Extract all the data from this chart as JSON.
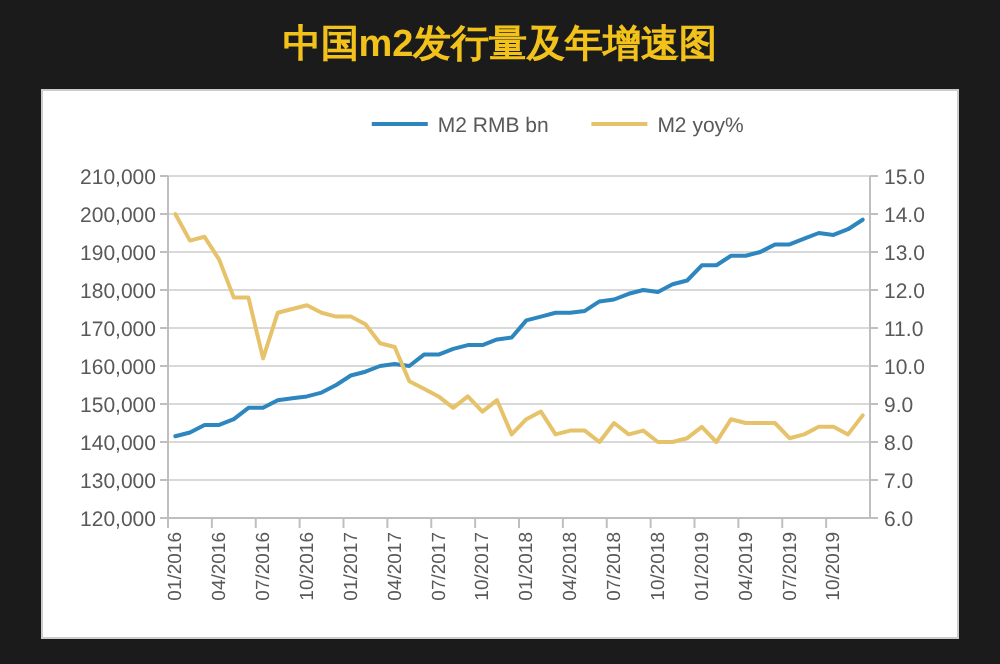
{
  "chart_data": {
    "type": "line",
    "title": "中国m2发行量及年增速图",
    "categories": [
      "01/2016",
      null,
      null,
      "04/2016",
      null,
      null,
      "07/2016",
      null,
      null,
      "10/2016",
      null,
      null,
      "01/2017",
      null,
      null,
      "04/2017",
      null,
      null,
      "07/2017",
      null,
      null,
      "10/2017",
      null,
      null,
      "01/2018",
      null,
      null,
      "04/2018",
      null,
      null,
      "07/2018",
      null,
      null,
      "10/2018",
      null,
      null,
      "01/2019",
      null,
      null,
      "04/2019",
      null,
      null,
      "07/2019",
      null,
      null,
      "10/2019",
      null,
      null
    ],
    "series": [
      {
        "name": "M2 RMB bn",
        "color": "#2e86bf",
        "values": [
          141500,
          142500,
          144500,
          144500,
          146000,
          149000,
          149000,
          151000,
          151500,
          152000,
          153000,
          155000,
          157500,
          158500,
          160000,
          160500,
          160000,
          163000,
          163000,
          164500,
          165500,
          165500,
          167000,
          167500,
          172000,
          173000,
          174000,
          174000,
          174500,
          177000,
          177500,
          179000,
          180000,
          179500,
          181500,
          182500,
          186500,
          186500,
          189000,
          189000,
          190000,
          192000,
          192000,
          193500,
          195000,
          194500,
          196000,
          198500
        ]
      },
      {
        "name": "M2 yoy%",
        "color": "#e6c36a",
        "axis": "y2",
        "values": [
          14.0,
          13.3,
          13.4,
          12.8,
          11.8,
          11.8,
          10.2,
          11.4,
          11.5,
          11.6,
          11.4,
          11.3,
          11.3,
          11.1,
          10.6,
          10.5,
          9.6,
          9.4,
          9.2,
          8.9,
          9.2,
          8.8,
          9.1,
          8.2,
          8.6,
          8.8,
          8.2,
          8.3,
          8.3,
          8.0,
          8.5,
          8.2,
          8.3,
          8.0,
          8.0,
          8.1,
          8.4,
          8.0,
          8.6,
          8.5,
          8.5,
          8.5,
          8.1,
          8.2,
          8.4,
          8.4,
          8.2,
          8.7
        ]
      }
    ],
    "ylim": [
      120000,
      210000
    ],
    "yticks": [
      {
        "value": 120000,
        "label": "120,000"
      },
      {
        "value": 130000,
        "label": "130,000"
      },
      {
        "value": 140000,
        "label": "140,000"
      },
      {
        "value": 150000,
        "label": "150,000"
      },
      {
        "value": 160000,
        "label": "160,000"
      },
      {
        "value": 170000,
        "label": "170,000"
      },
      {
        "value": 180000,
        "label": "180,000"
      },
      {
        "value": 190000,
        "label": "190,000"
      },
      {
        "value": 200000,
        "label": "200,000"
      },
      {
        "value": 210000,
        "label": "210,000"
      }
    ],
    "y2lim": [
      6,
      15
    ],
    "y2ticks": [
      {
        "value": 6,
        "label": "6.0"
      },
      {
        "value": 7,
        "label": "7.0"
      },
      {
        "value": 8,
        "label": "8.0"
      },
      {
        "value": 9,
        "label": "9.0"
      },
      {
        "value": 10,
        "label": "10.0"
      },
      {
        "value": 11,
        "label": "11.0"
      },
      {
        "value": 12,
        "label": "12.0"
      },
      {
        "value": 13,
        "label": "13.0"
      },
      {
        "value": 14,
        "label": "14.0"
      },
      {
        "value": 15,
        "label": "15.0"
      }
    ],
    "grid": "y",
    "legend": "top"
  }
}
